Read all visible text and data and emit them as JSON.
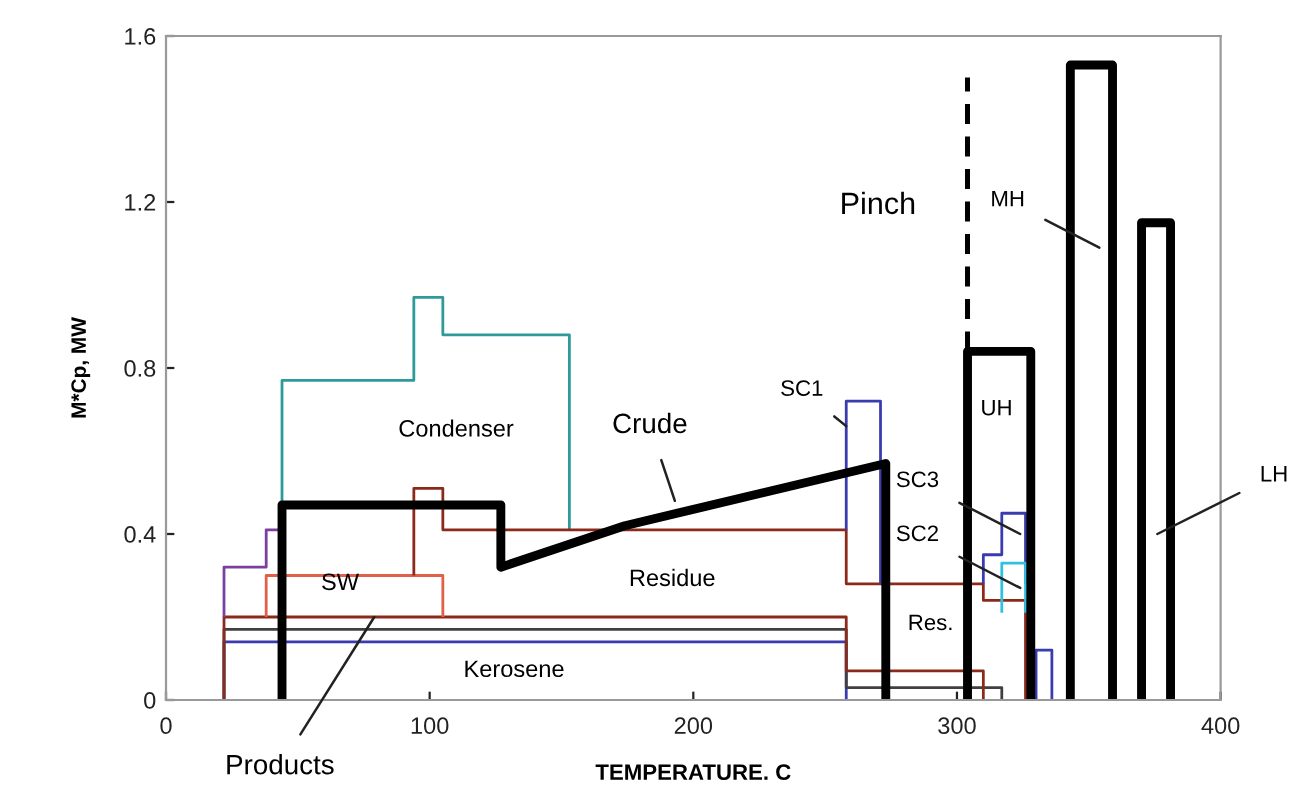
{
  "chart_data": {
    "type": "line",
    "xlabel": "TEMPERATURE. C",
    "ylabel": "M*Cp, MW",
    "xlim": [
      0,
      400
    ],
    "ylim": [
      0,
      1.6
    ],
    "xticks": [
      0,
      100,
      200,
      300,
      400
    ],
    "yticks": [
      0,
      0.4,
      0.8,
      1.2,
      1.6
    ],
    "grid": false,
    "legend": false,
    "marker": "none",
    "series": [
      {
        "color": "#3b3bb0",
        "x": [
          22,
          22,
          258,
          258
        ],
        "values": [
          0,
          0.14,
          0.14,
          0
        ]
      },
      {
        "color": "#404040",
        "x": [
          22,
          22,
          258,
          258,
          317,
          317
        ],
        "values": [
          0,
          0.17,
          0.17,
          0.03,
          0.03,
          0
        ]
      },
      {
        "color": "#8b2a1a",
        "x": [
          22,
          22,
          258,
          258,
          310,
          310
        ],
        "values": [
          0,
          0.2,
          0.2,
          0.07,
          0.07,
          0
        ]
      },
      {
        "color": "#7a3fa0",
        "x": [
          22,
          22,
          38,
          38,
          44
        ],
        "values": [
          0.2,
          0.32,
          0.32,
          0.41,
          0.41
        ]
      },
      {
        "color": "#e0604a",
        "x": [
          38,
          38,
          105,
          105
        ],
        "values": [
          0.2,
          0.3,
          0.3,
          0.2
        ]
      },
      {
        "color": "#2e9a9a",
        "x": [
          44,
          44,
          94,
          94,
          105,
          105,
          153,
          153
        ],
        "values": [
          0.47,
          0.77,
          0.77,
          0.97,
          0.97,
          0.88,
          0.88,
          0.41
        ]
      },
      {
        "color": "#8b2a1a",
        "x": [
          94,
          94,
          105,
          105,
          258,
          258,
          310,
          310,
          326,
          326
        ],
        "values": [
          0.3,
          0.51,
          0.51,
          0.41,
          0.41,
          0.28,
          0.28,
          0.24,
          0.24,
          0
        ]
      },
      {
        "color": "#3b3bb0",
        "x": [
          258,
          258,
          271,
          271
        ],
        "values": [
          0.41,
          0.72,
          0.72,
          0.28
        ]
      },
      {
        "color": "#3b3bb0",
        "x": [
          310,
          310,
          317,
          317,
          326,
          326
        ],
        "values": [
          0.28,
          0.35,
          0.35,
          0.45,
          0.45,
          0.28
        ]
      },
      {
        "color": "#33c0e0",
        "x": [
          317,
          317,
          326,
          326
        ],
        "values": [
          0.21,
          0.33,
          0.33,
          0.21
        ]
      },
      {
        "color": "#3b3bb0",
        "x": [
          330,
          330,
          336,
          336
        ],
        "values": [
          0,
          0.12,
          0.12,
          0
        ]
      },
      {
        "color": "#000000",
        "x": [
          44,
          44,
          127,
          127,
          174,
          273,
          273
        ],
        "values": [
          0,
          0.47,
          0.47,
          0.32,
          0.42,
          0.57,
          0
        ]
      },
      {
        "color": "#000000",
        "x": [
          304,
          304,
          328,
          328
        ],
        "values": [
          0,
          0.84,
          0.84,
          0
        ]
      },
      {
        "color": "#000000",
        "x": [
          343,
          343,
          359,
          359
        ],
        "values": [
          0,
          1.53,
          1.53,
          0
        ]
      },
      {
        "color": "#000000",
        "x": [
          370,
          370,
          381,
          381
        ],
        "values": [
          0,
          1.15,
          1.15,
          0
        ]
      },
      {
        "color": "#000000",
        "line_style": "dashed",
        "x": [
          304,
          304
        ],
        "values": [
          0.84,
          1.5
        ]
      }
    ],
    "annotations": [
      "Pinch",
      {
        "text": "MH",
        "x": 354,
        "y": 1.09
      },
      {
        "text": "LH",
        "x": 376,
        "y": 0.4
      },
      "UH",
      {
        "text": "SC1",
        "x": 258,
        "y": 0.66
      },
      {
        "text": "SC3",
        "x": 324,
        "y": 0.4
      },
      {
        "text": "SC2",
        "x": 324,
        "y": 0.27
      },
      "Res.",
      {
        "text": "Crude",
        "x": 193,
        "y": 0.48
      },
      "Condenser",
      "Residue",
      "SW",
      "Kerosene",
      {
        "text": "Products",
        "x": 79,
        "y": 0.2
      }
    ]
  }
}
